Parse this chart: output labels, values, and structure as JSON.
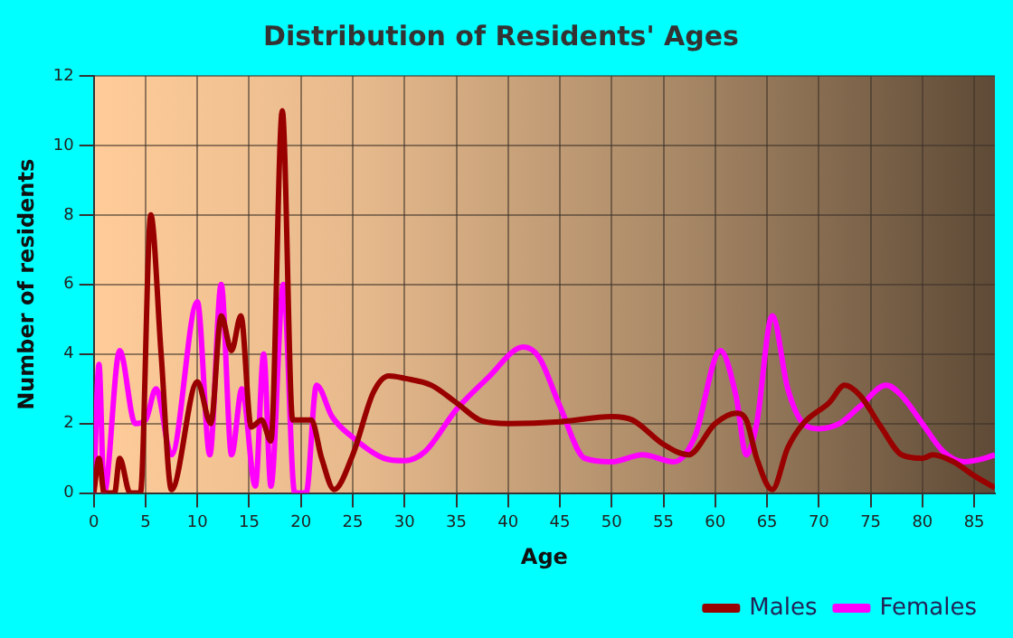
{
  "chart_data": {
    "type": "line",
    "title": "Distribution of Residents' Ages",
    "xlabel": "Age",
    "ylabel": "Number of residents",
    "xlim": [
      0,
      87
    ],
    "xticks": [
      0,
      5,
      10,
      15,
      20,
      25,
      30,
      35,
      40,
      45,
      50,
      55,
      60,
      65,
      70,
      75,
      80,
      85
    ],
    "ylim": [
      0,
      12
    ],
    "yticks": [
      0,
      2,
      4,
      6,
      8,
      10,
      12
    ],
    "grid": true,
    "legend": "bottom right",
    "marker": "none",
    "line_style": "solid",
    "series": [
      {
        "name": "Males",
        "color": "#990000",
        "x": [
          0,
          0.5,
          1,
          2,
          2.5,
          3.5,
          4.5,
          5.5,
          6.5,
          7.5,
          10,
          11.3,
          12.3,
          13.3,
          14.2,
          15.2,
          16.2,
          17.1,
          18.2,
          19.2,
          21,
          22,
          23.2,
          25,
          27,
          28.5,
          30,
          32.6,
          35,
          37.5,
          40,
          45,
          50,
          52,
          55,
          57.4,
          60,
          62,
          63,
          64,
          65.5,
          67,
          68.5,
          71,
          72.5,
          74,
          76,
          78,
          80,
          81,
          83,
          85,
          87
        ],
        "values": [
          0,
          1,
          0,
          0,
          1,
          0,
          0,
          8,
          4,
          0.1,
          3.2,
          2,
          5.1,
          4.1,
          5.1,
          1.9,
          2.1,
          1.5,
          11,
          2.1,
          2.1,
          1,
          0.1,
          1.1,
          2.9,
          3.37,
          3.3,
          3.1,
          2.6,
          2.07,
          2,
          2.05,
          2.2,
          2.1,
          1.4,
          1.1,
          2,
          2.3,
          2.1,
          1,
          0.1,
          1.3,
          2,
          2.6,
          3.1,
          2.8,
          1.9,
          1.1,
          1,
          1.1,
          0.9,
          0.5,
          0.15
        ]
      },
      {
        "name": "Females",
        "color": "#ff00ff",
        "x": [
          0,
          0.5,
          1,
          2.5,
          4,
          5,
          6,
          7.5,
          10,
          11.2,
          12.3,
          13.3,
          14.3,
          15.6,
          16.4,
          17.1,
          18.3,
          19.4,
          20.5,
          21.5,
          23,
          25,
          28,
          30,
          32,
          35,
          38,
          41.5,
          43,
          45,
          47.4,
          50,
          53,
          56,
          58,
          60.5,
          62,
          63,
          64,
          65.5,
          67,
          68.5,
          70,
          72,
          74,
          76.5,
          78,
          80,
          82,
          84,
          86,
          87
        ],
        "values": [
          0,
          3.7,
          0,
          4.1,
          2,
          2.1,
          3,
          1.1,
          5.5,
          1.1,
          6,
          1.1,
          3,
          0.2,
          4,
          0.2,
          6,
          0,
          0,
          3.1,
          2.2,
          1.6,
          1,
          0.93,
          1.2,
          2.4,
          3.3,
          4.2,
          3.9,
          2.5,
          1,
          0.9,
          1.1,
          0.9,
          1.6,
          4.1,
          2.8,
          1.1,
          2,
          5.1,
          3,
          2,
          1.85,
          2,
          2.5,
          3.1,
          2.8,
          2,
          1.2,
          0.9,
          1,
          1.1
        ]
      }
    ]
  }
}
